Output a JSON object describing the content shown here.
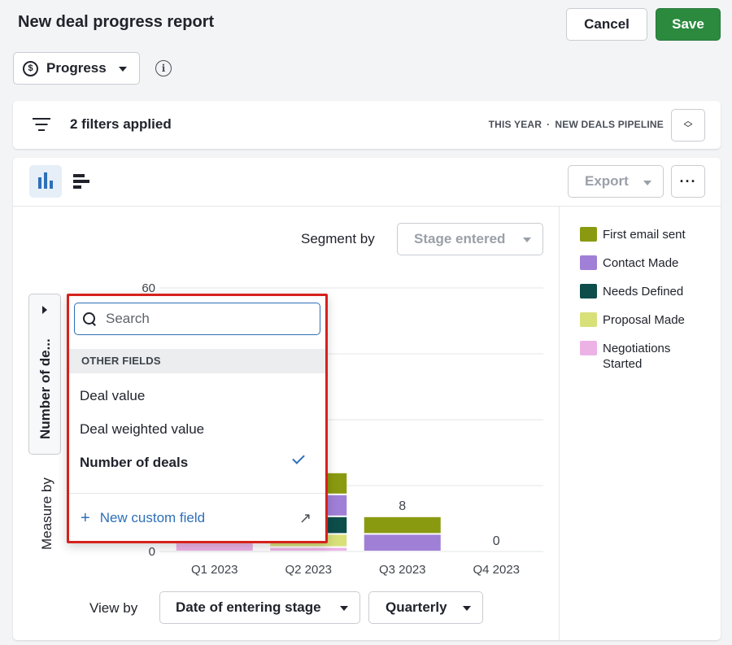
{
  "header": {
    "title": "New deal progress report",
    "cancel_label": "Cancel",
    "save_label": "Save"
  },
  "metric": {
    "label": "Progress",
    "icon": "dollar-circle-icon"
  },
  "filters": {
    "text": "2 filters applied",
    "period": "THIS YEAR",
    "separator": "·",
    "pipeline": "NEW DEALS PIPELINE"
  },
  "toolbar": {
    "export_label": "Export",
    "more_label": "···"
  },
  "segment": {
    "label": "Segment by",
    "value": "Stage entered"
  },
  "measure": {
    "tab_label": "Number of de...",
    "label": "Measure by"
  },
  "view_by": {
    "label": "View by",
    "date_value": "Date of entering stage",
    "period_value": "Quarterly"
  },
  "legend": [
    {
      "label": "First email sent",
      "color": "#8a9a10"
    },
    {
      "label": "Contact Made",
      "color": "#a07fd6"
    },
    {
      "label": "Needs Defined",
      "color": "#0d4d4a"
    },
    {
      "label": "Proposal Made",
      "color": "#d8e07a"
    },
    {
      "label": "Negotiations Started",
      "color": "#ecb2e6"
    }
  ],
  "dropdown": {
    "search_placeholder": "Search",
    "group_label": "OTHER FIELDS",
    "items": [
      {
        "label": "Deal value",
        "selected": false
      },
      {
        "label": "Deal weighted value",
        "selected": false
      },
      {
        "label": "Number of deals",
        "selected": true
      }
    ],
    "footer_label": "New custom field",
    "footer_icon": "external-arrow-icon"
  },
  "chart_data": {
    "type": "bar",
    "stacked": true,
    "categories": [
      "Q1 2023",
      "Q2 2023",
      "Q3 2023",
      "Q4 2023"
    ],
    "y_ticks": [
      0,
      60
    ],
    "ylim": [
      0,
      60
    ],
    "series": [
      {
        "name": "First email sent",
        "values": [
          null,
          5,
          4,
          0
        ]
      },
      {
        "name": "Contact Made",
        "values": [
          null,
          5,
          4,
          0
        ]
      },
      {
        "name": "Needs Defined",
        "values": [
          null,
          4,
          0,
          0
        ]
      },
      {
        "name": "Proposal Made",
        "values": [
          null,
          3,
          0,
          0
        ]
      },
      {
        "name": "Negotiations Started",
        "values": [
          2,
          1,
          0,
          0
        ]
      }
    ],
    "totals": [
      null,
      null,
      8,
      0
    ],
    "grid": true
  }
}
